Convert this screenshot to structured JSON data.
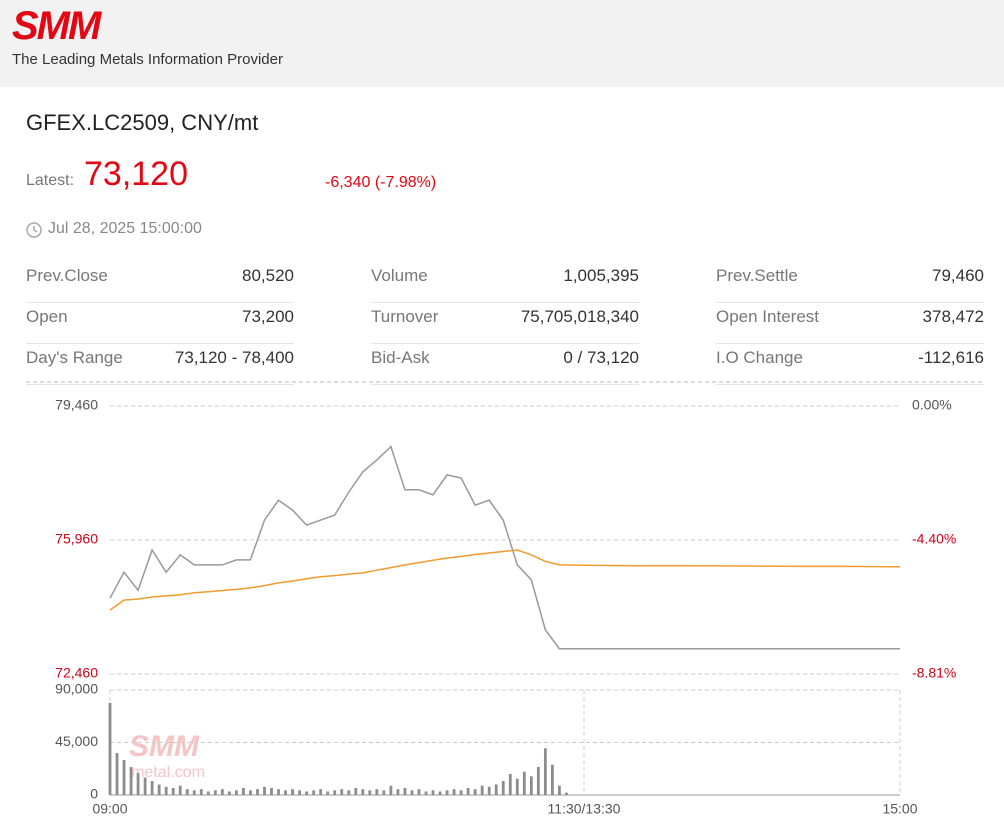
{
  "header": {
    "logo": "SMM",
    "tagline": "The Leading Metals Information Provider"
  },
  "quote": {
    "title": "GFEX.LC2509, CNY/mt",
    "latest_label": "Latest:",
    "latest": "73,120",
    "change": "-6,340 (-7.98%)",
    "time": "Jul 28, 2025 15:00:00"
  },
  "stats": [
    [
      {
        "label": "Prev.Close",
        "value": "80,520"
      },
      {
        "label": "Volume",
        "value": "1,005,395"
      },
      {
        "label": "Prev.Settle",
        "value": "79,460"
      }
    ],
    [
      {
        "label": "Open",
        "value": "73,200"
      },
      {
        "label": "Turnover",
        "value": "75,705,018,340"
      },
      {
        "label": "Open Interest",
        "value": "378,472"
      }
    ],
    [
      {
        "label": "Day's Range",
        "value": "73,120 - 78,400"
      },
      {
        "label": "Bid-Ask",
        "value": "0 / 73,120"
      },
      {
        "label": "I.O Change",
        "value": "-112,616"
      }
    ]
  ],
  "watermark": {
    "logo": "SMM",
    "site": "metal.com"
  },
  "chart_data": [
    {
      "type": "line",
      "x": [
        0,
        4,
        8,
        12,
        16,
        20,
        24,
        28,
        32,
        36,
        40,
        44,
        48,
        52,
        56,
        60,
        64,
        68,
        72,
        76,
        80,
        84,
        88,
        92,
        96,
        100,
        104,
        108,
        112,
        116,
        120,
        124,
        128,
        135,
        150,
        165,
        180,
        195,
        210,
        225
      ],
      "series": [
        {
          "color": "#999999",
          "values": [
            74440,
            75120,
            74650,
            75700,
            75120,
            75570,
            75310,
            75310,
            75310,
            75440,
            75440,
            76480,
            77000,
            76740,
            76350,
            76480,
            76610,
            77210,
            77740,
            78050,
            78400,
            77270,
            77270,
            77140,
            77660,
            77580,
            76870,
            77000,
            76480,
            75310,
            74920,
            73610,
            73120,
            73120,
            73120,
            73120,
            73120,
            73120,
            73120,
            73120
          ]
        },
        {
          "color": "#f29a2e",
          "values": [
            74130,
            74390,
            74420,
            74470,
            74500,
            74530,
            74580,
            74610,
            74640,
            74670,
            74710,
            74770,
            74840,
            74890,
            74950,
            75000,
            75030,
            75070,
            75100,
            75170,
            75240,
            75310,
            75370,
            75430,
            75490,
            75530,
            75580,
            75620,
            75660,
            75700,
            75570,
            75400,
            75310,
            75300,
            75290,
            75290,
            75280,
            75270,
            75270,
            75260
          ]
        }
      ],
      "xlim": [
        0,
        225
      ],
      "ylim": [
        72460,
        79460
      ],
      "yticks": [
        {
          "value": 72460,
          "label": "72,460"
        },
        {
          "value": 75960,
          "label": "75,960"
        },
        {
          "value": 79460,
          "label": "79,460"
        }
      ],
      "y2lim": [
        -8.81,
        0
      ],
      "y2ticks": [
        {
          "value": -8.81,
          "label": "-8.81%"
        },
        {
          "value": -4.4,
          "label": "-4.40%"
        },
        {
          "value": 0,
          "label": "0.00%"
        }
      ],
      "grid": true
    },
    {
      "type": "bar",
      "color": "#8c8c8c",
      "x": [
        0,
        2,
        4,
        6,
        8,
        10,
        12,
        14,
        16,
        18,
        20,
        22,
        24,
        26,
        28,
        30,
        32,
        34,
        36,
        38,
        40,
        42,
        44,
        46,
        48,
        50,
        52,
        54,
        56,
        58,
        60,
        62,
        64,
        66,
        68,
        70,
        72,
        74,
        76,
        78,
        80,
        82,
        84,
        86,
        88,
        90,
        92,
        94,
        96,
        98,
        100,
        102,
        104,
        106,
        108,
        110,
        112,
        114,
        116,
        118,
        120,
        122,
        124,
        126,
        128,
        130
      ],
      "values": [
        79000,
        36000,
        30000,
        24000,
        19000,
        15000,
        12000,
        9000,
        7000,
        6000,
        8000,
        5000,
        4000,
        5000,
        3000,
        4000,
        5000,
        3000,
        4000,
        6000,
        4000,
        5000,
        7000,
        6000,
        5000,
        4000,
        5000,
        4000,
        3000,
        4000,
        5000,
        3000,
        4000,
        5000,
        4000,
        6000,
        5000,
        4000,
        5000,
        4000,
        8000,
        5000,
        6000,
        4000,
        5000,
        3000,
        4000,
        3000,
        4000,
        5000,
        4000,
        6000,
        5000,
        8000,
        7000,
        9000,
        12000,
        18000,
        14000,
        20000,
        16000,
        24000,
        40000,
        26000,
        8000,
        2000
      ],
      "xlim": [
        0,
        225
      ],
      "xticks": [
        {
          "value": 0,
          "label": "09:00"
        },
        {
          "value": 135,
          "label": "11:30/13:30"
        },
        {
          "value": 225,
          "label": "15:00"
        }
      ],
      "ylim": [
        0,
        90000
      ],
      "yticks": [
        0,
        {
          "value": 45000,
          "label": "45,000"
        },
        {
          "value": 90000,
          "label": "90,000"
        }
      ],
      "grid": true
    }
  ]
}
